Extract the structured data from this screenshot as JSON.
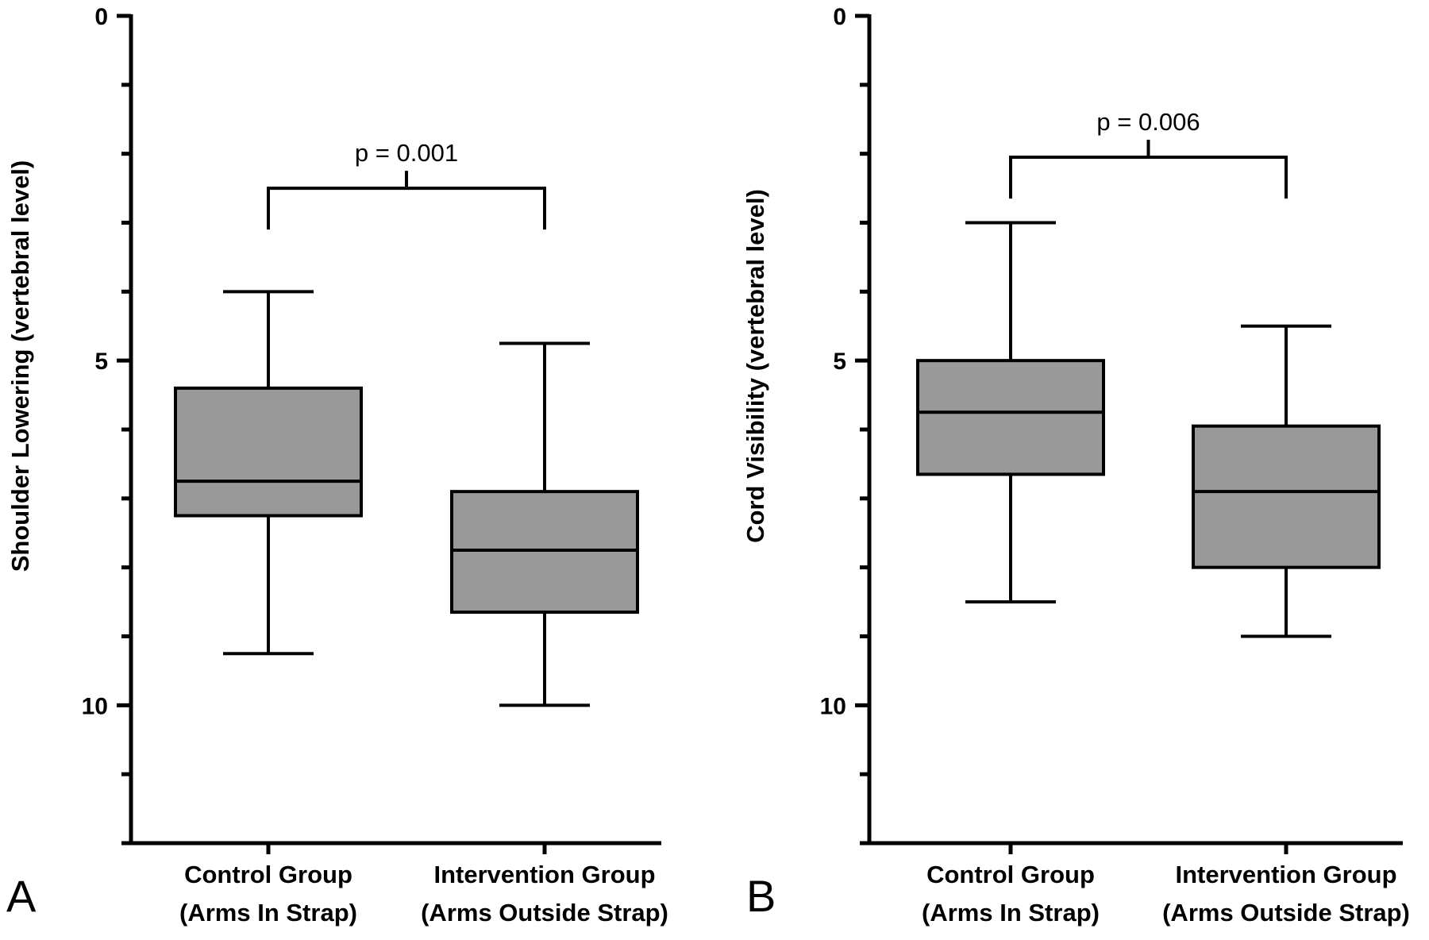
{
  "colors": {
    "box_fill": "#999999",
    "stroke": "#000000",
    "background": "#ffffff"
  },
  "chart_data": [
    {
      "type": "box",
      "panel_label": "A",
      "ylabel": "Shoulder Lowering (vertebral level)",
      "ylim": [
        0,
        12
      ],
      "y_inverted": true,
      "y_ticks": [
        0,
        5,
        10
      ],
      "y_minor_ticks": [
        1,
        2,
        3,
        4,
        6,
        7,
        8,
        9,
        11,
        12
      ],
      "categories": [
        {
          "line1": "Control Group",
          "line2": "(Arms In Strap)"
        },
        {
          "line1": "Intervention Group",
          "line2": "(Arms Outside Strap)"
        }
      ],
      "boxes": [
        {
          "whisker_low": 4,
          "q1": 5.4,
          "median": 6.75,
          "q3": 7.25,
          "whisker_high": 9.25
        },
        {
          "whisker_low": 4.75,
          "q1": 6.9,
          "median": 7.75,
          "q3": 8.65,
          "whisker_high": 10
        }
      ],
      "significance": {
        "text": "p = 0.001",
        "bracket_y": 2.5,
        "leg_y": 3.1
      }
    },
    {
      "type": "box",
      "panel_label": "B",
      "ylabel": "Cord Visibility (vertebral level)",
      "ylim": [
        0,
        12
      ],
      "y_inverted": true,
      "y_ticks": [
        0,
        5,
        10
      ],
      "y_minor_ticks": [
        1,
        2,
        3,
        4,
        6,
        7,
        8,
        9,
        11,
        12
      ],
      "categories": [
        {
          "line1": "Control Group",
          "line2": "(Arms In Strap)"
        },
        {
          "line1": "Intervention Group",
          "line2": "(Arms Outside Strap)"
        }
      ],
      "boxes": [
        {
          "whisker_low": 3,
          "q1": 5.0,
          "median": 5.75,
          "q3": 6.65,
          "whisker_high": 8.5
        },
        {
          "whisker_low": 4.5,
          "q1": 5.95,
          "median": 6.9,
          "q3": 8.0,
          "whisker_high": 9.0
        }
      ],
      "significance": {
        "text": "p = 0.006",
        "bracket_y": 2.05,
        "leg_y": 2.65
      }
    }
  ]
}
